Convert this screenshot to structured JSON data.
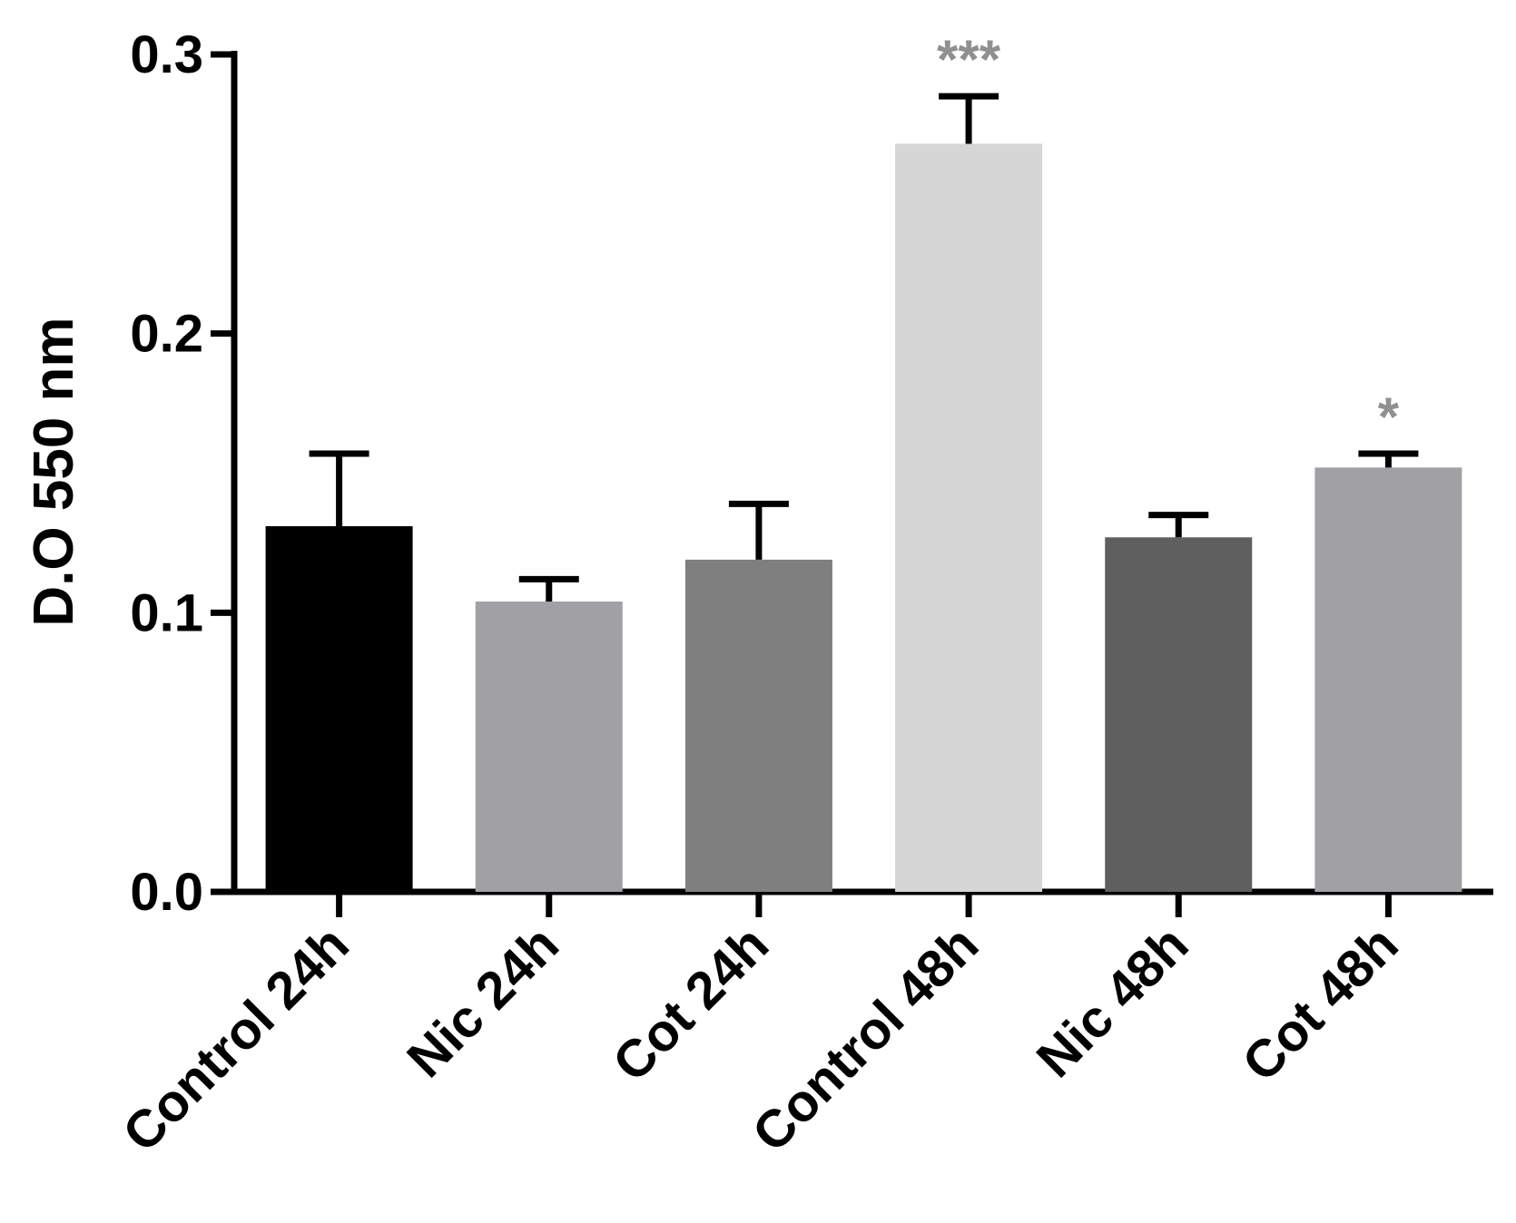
{
  "chart_data": {
    "type": "bar",
    "title": "",
    "xlabel": "",
    "ylabel": "D.O 550 nm",
    "ylim": [
      0,
      0.3
    ],
    "yticks": [
      {
        "value": 0.0,
        "label": "0.0"
      },
      {
        "value": 0.1,
        "label": "0.1"
      },
      {
        "value": 0.2,
        "label": "0.2"
      },
      {
        "value": 0.3,
        "label": "0.3"
      }
    ],
    "grid": false,
    "legend": "none",
    "categories": [
      "Control 24h",
      "Nic   24h",
      "Cot   24h",
      "Control 48h",
      "Nic   48h",
      "Cot   48h"
    ],
    "values": [
      0.131,
      0.104,
      0.119,
      0.268,
      0.127,
      0.152
    ],
    "errors": [
      0.026,
      0.008,
      0.02,
      0.017,
      0.008,
      0.005
    ],
    "colors": [
      "#000000",
      "#a1a1a5",
      "#7f7f7f",
      "#d6d6d6",
      "#5f5f5f",
      "#a1a1a5"
    ],
    "significance": [
      "",
      "",
      "",
      "***",
      "",
      "*"
    ],
    "significance_color": "#909090"
  }
}
